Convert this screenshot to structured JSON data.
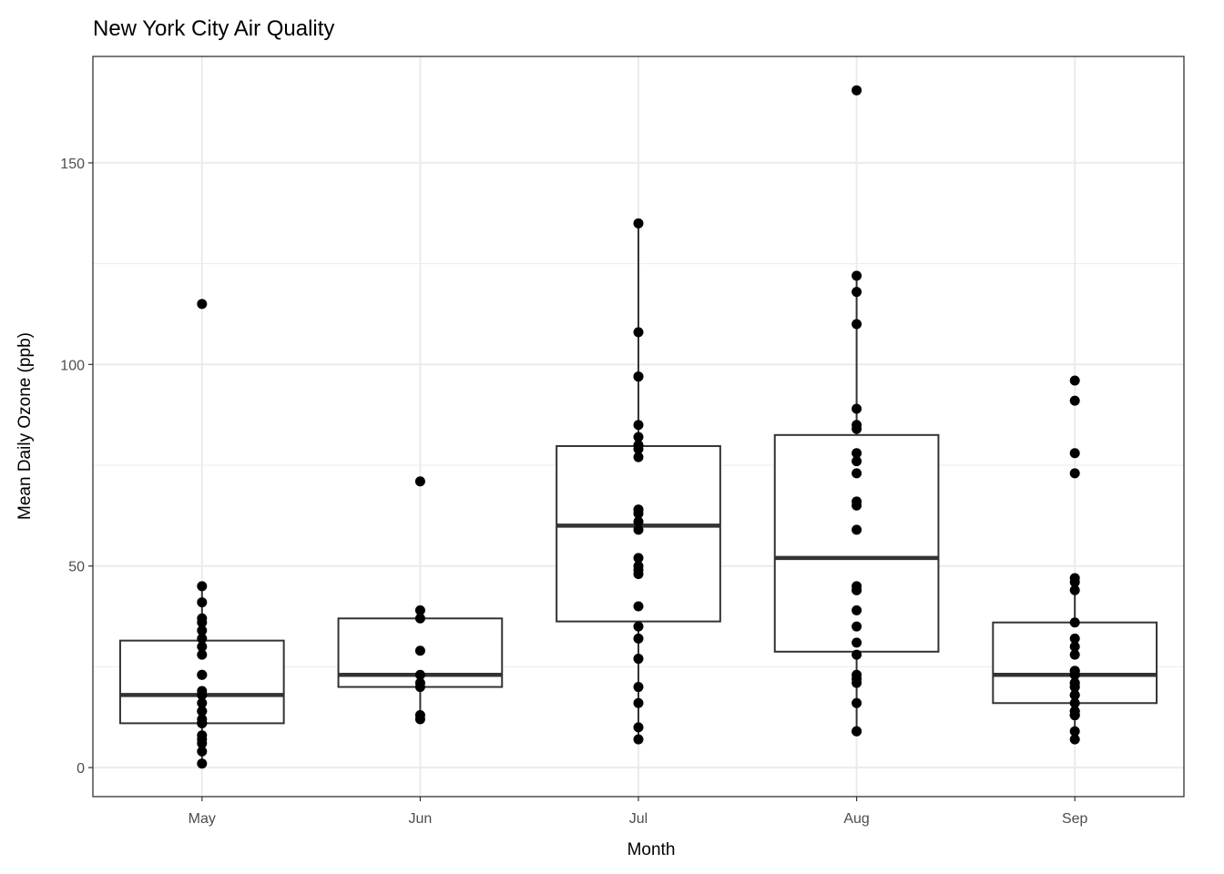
{
  "chart_data": {
    "type": "boxplot",
    "title": "New York City Air Quality",
    "xlabel": "Month",
    "ylabel": "Mean Daily Ozone (ppb)",
    "categories": [
      "May",
      "Jun",
      "Jul",
      "Aug",
      "Sep"
    ],
    "yticks": [
      0,
      50,
      100,
      150
    ],
    "ytick_labels": [
      "0",
      "50",
      "100",
      "150"
    ],
    "yminor": [
      25,
      75,
      125
    ],
    "ylim": [
      -7.2,
      176.4
    ],
    "grid": true,
    "series": [
      {
        "name": "May",
        "values": [
          41,
          36,
          12,
          18,
          28,
          23,
          19,
          8,
          7,
          16,
          11,
          14,
          18,
          14,
          34,
          6,
          30,
          11,
          1,
          11,
          4,
          32,
          23,
          45,
          115,
          37
        ]
      },
      {
        "name": "Jun",
        "values": [
          29,
          71,
          39,
          23,
          21,
          37,
          20,
          12,
          13
        ]
      },
      {
        "name": "Jul",
        "values": [
          135,
          49,
          32,
          64,
          40,
          77,
          97,
          97,
          85,
          10,
          27,
          7,
          48,
          35,
          61,
          79,
          63,
          16,
          80,
          108,
          20,
          52,
          82,
          50,
          64,
          59
        ]
      },
      {
        "name": "Aug",
        "values": [
          39,
          9,
          16,
          78,
          35,
          66,
          122,
          89,
          110,
          44,
          28,
          65,
          22,
          59,
          23,
          31,
          44,
          21,
          9,
          45,
          168,
          73,
          76,
          118,
          84,
          85
        ]
      },
      {
        "name": "Sep",
        "values": [
          96,
          78,
          73,
          91,
          47,
          32,
          20,
          23,
          21,
          24,
          44,
          21,
          28,
          9,
          13,
          46,
          18,
          13,
          24,
          16,
          13,
          23,
          36,
          7,
          14,
          30,
          14,
          18,
          20
        ]
      }
    ],
    "colors": {
      "box": "#333333",
      "point": "#000000",
      "grid": "#ebebeb",
      "panel_border": "#333333"
    }
  }
}
